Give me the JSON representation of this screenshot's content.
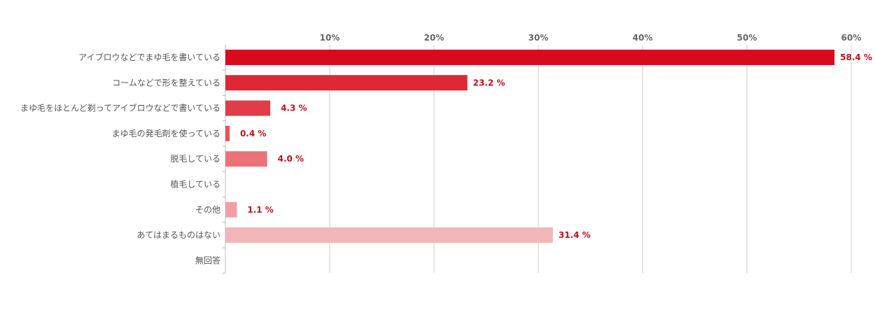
{
  "chart_data": {
    "type": "bar",
    "orientation": "horizontal",
    "categories": [
      "アイブロウなどでまゆ毛を書いている",
      "コームなどで形を整えている",
      "まゆ毛をほとんど剃ってアイブロウなどで書いている",
      "まゆ毛の発毛剤を使っている",
      "脱毛している",
      "植毛している",
      "その他",
      "あてはまるものはない",
      "無回答"
    ],
    "values": [
      58.4,
      23.2,
      4.3,
      0.4,
      4.0,
      0,
      1.1,
      31.4,
      0
    ],
    "value_labels": [
      "58.4 %",
      "23.2 %",
      "4.3 %",
      "0.4 %",
      "4.0 %",
      "",
      "1.1 %",
      "31.4 %",
      ""
    ],
    "bar_colors": [
      "#d90a1e",
      "#df2634",
      "#e43b48",
      "#e8535d",
      "#ec727a",
      "#ee8990",
      "#f0a0a5",
      "#f2b5b8",
      "#f4c8ca"
    ],
    "x_ticks": [
      10,
      20,
      30,
      40,
      50,
      60
    ],
    "x_tick_labels": [
      "10%",
      "20%",
      "30%",
      "40%",
      "50%",
      "60%"
    ],
    "xlim": [
      0,
      60
    ],
    "xaxis_position": "top",
    "grid": true,
    "legend": "none",
    "colors": {
      "value_label": "#c0101e",
      "grid": "#cccccc",
      "tick_label": "#666666",
      "category_label": "#555555"
    }
  }
}
